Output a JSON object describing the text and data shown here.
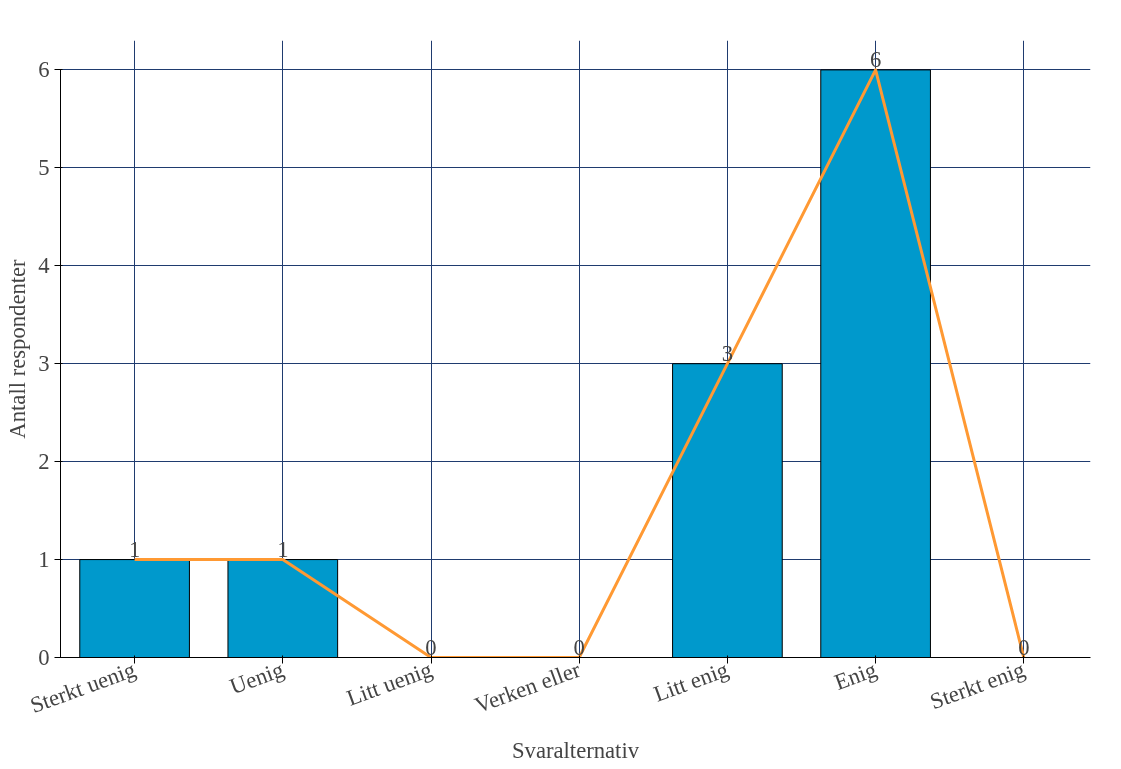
{
  "chart_data": {
    "type": "bar",
    "xlabel": "Svaralternativ",
    "ylabel": "Antall respondenter",
    "categories": [
      "Sterkt uenig",
      "Uenig",
      "Litt uenig",
      "Verken eller",
      "Litt enig",
      "Enig",
      "Sterkt enig"
    ],
    "series": [
      {
        "color": "#0099cc",
        "values": [
          1,
          1,
          0,
          0,
          3,
          6,
          0
        ],
        "value_labels": [
          "1",
          "1",
          "0",
          "0",
          "3",
          "6",
          "0"
        ]
      },
      {
        "type": "line",
        "color": "#ff9933",
        "values": [
          1,
          1,
          0,
          0,
          3,
          6,
          0
        ]
      }
    ],
    "ylim": [
      0,
      6
    ],
    "yticks": [
      0,
      1,
      2,
      3,
      4,
      5,
      6
    ],
    "grid": true,
    "line_style": "solid",
    "marker": "none"
  }
}
